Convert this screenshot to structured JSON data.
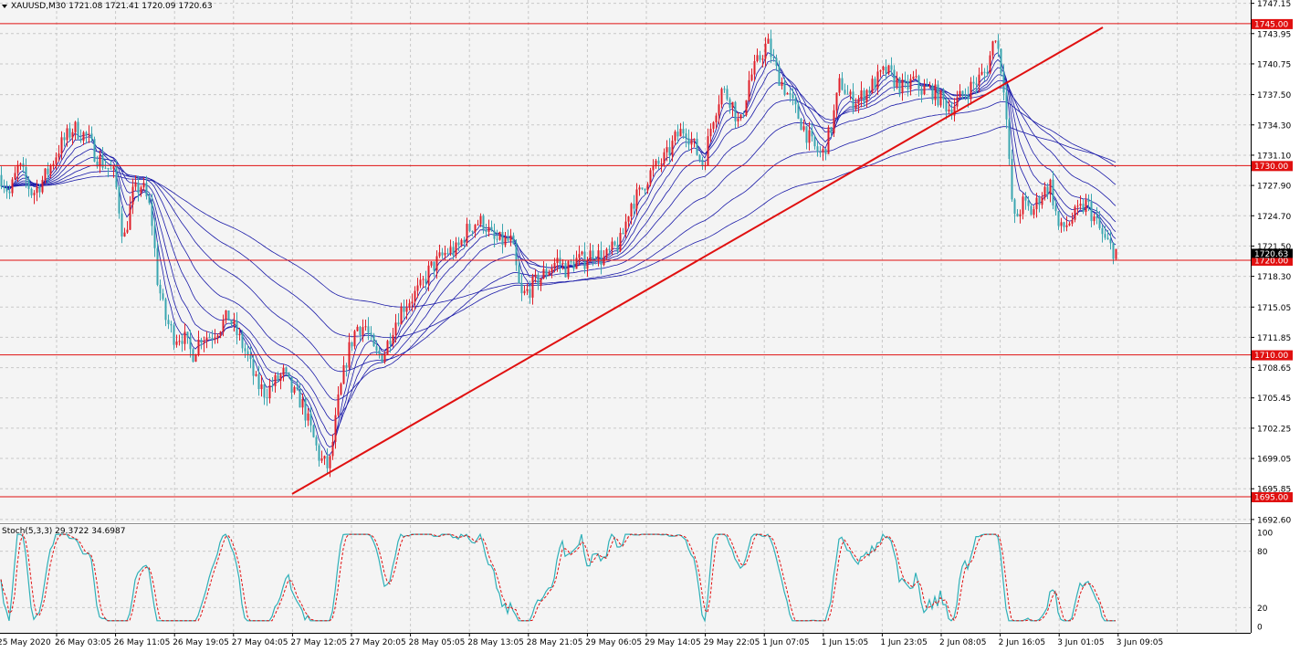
{
  "header": {
    "symbol": "XAUUSD,M30",
    "open": "1721.08",
    "high": "1721.41",
    "low": "1720.09",
    "close": "1720.63"
  },
  "indicator": {
    "label": "Stoch(5,3,3) 29.3722 34.6987",
    "levels": [
      "100",
      "80",
      "20",
      "0"
    ]
  },
  "colors": {
    "background": "#f4f4f4",
    "grid": "#c8c8c8",
    "bull_candle": "#e0202a",
    "bear_candle": "#3aa6b0",
    "ema_ribbon": "#1a1aa8",
    "level_line": "#e01010",
    "trendline": "#e01010",
    "stoch_main": "#2fb0b8",
    "stoch_signal": "#e01010"
  },
  "chart_data": {
    "type": "candlestick",
    "symbol": "XAUUSD",
    "timeframe": "M30",
    "y_ticks": [
      "1747.15",
      "1743.95",
      "1740.75",
      "1737.50",
      "1734.30",
      "1731.10",
      "1727.90",
      "1724.70",
      "1721.50",
      "1718.30",
      "1715.05",
      "1711.85",
      "1708.65",
      "1705.45",
      "1702.25",
      "1699.05",
      "1695.85",
      "1692.60"
    ],
    "ylim": [
      1692.6,
      1747.5
    ],
    "x_ticks": [
      "25 May 2020",
      "26 May 03:05",
      "26 May 11:05",
      "26 May 19:05",
      "27 May 04:05",
      "27 May 12:05",
      "27 May 20:05",
      "28 May 05:05",
      "28 May 13:05",
      "28 May 21:05",
      "29 May 06:05",
      "29 May 14:05",
      "29 May 22:05",
      "1 Jun 07:05",
      "1 Jun 15:05",
      "1 Jun 23:05",
      "2 Jun 08:05",
      "2 Jun 16:05",
      "3 Jun 01:05",
      "3 Jun 09:05"
    ],
    "horizontal_levels": [
      {
        "value": 1745.0,
        "label": "1745.00"
      },
      {
        "value": 1730.0,
        "label": "1730.00"
      },
      {
        "value": 1720.0,
        "label": "1720.00"
      },
      {
        "value": 1710.0,
        "label": "1710.00"
      },
      {
        "value": 1695.0,
        "label": "1695.00"
      }
    ],
    "current_price_label": "1720.63",
    "trendline": {
      "from": {
        "bar": 320,
        "price": 1695.3
      },
      "to": {
        "bar": 1208,
        "price": 1744.6
      }
    },
    "price_path": [
      [
        0,
        1729
      ],
      [
        10,
        1727
      ],
      [
        20,
        1730
      ],
      [
        35,
        1727
      ],
      [
        50,
        1729
      ],
      [
        65,
        1732
      ],
      [
        80,
        1734
      ],
      [
        95,
        1733
      ],
      [
        105,
        1731
      ],
      [
        115,
        1730
      ],
      [
        125,
        1729
      ],
      [
        135,
        1722
      ],
      [
        145,
        1727
      ],
      [
        155,
        1728
      ],
      [
        165,
        1725
      ],
      [
        172,
        1718
      ],
      [
        180,
        1714
      ],
      [
        190,
        1712
      ],
      [
        200,
        1712
      ],
      [
        210,
        1710
      ],
      [
        220,
        1712
      ],
      [
        230,
        1712
      ],
      [
        240,
        1713
      ],
      [
        250,
        1714
      ],
      [
        260,
        1712
      ],
      [
        270,
        1710
      ],
      [
        280,
        1707
      ],
      [
        290,
        1706
      ],
      [
        300,
        1707
      ],
      [
        310,
        1708
      ],
      [
        320,
        1706
      ],
      [
        330,
        1705
      ],
      [
        340,
        1702
      ],
      [
        350,
        1699
      ],
      [
        360,
        1698
      ],
      [
        370,
        1705
      ],
      [
        380,
        1710
      ],
      [
        390,
        1713
      ],
      [
        400,
        1713
      ],
      [
        410,
        1710
      ],
      [
        420,
        1710
      ],
      [
        430,
        1713
      ],
      [
        440,
        1715
      ],
      [
        450,
        1716
      ],
      [
        460,
        1717
      ],
      [
        470,
        1719
      ],
      [
        480,
        1720
      ],
      [
        490,
        1721
      ],
      [
        500,
        1721
      ],
      [
        510,
        1723
      ],
      [
        520,
        1724
      ],
      [
        530,
        1724
      ],
      [
        540,
        1722
      ],
      [
        550,
        1722
      ],
      [
        560,
        1722
      ],
      [
        570,
        1716
      ],
      [
        580,
        1717
      ],
      [
        590,
        1718
      ],
      [
        600,
        1719
      ],
      [
        610,
        1720
      ],
      [
        620,
        1719
      ],
      [
        630,
        1720
      ],
      [
        640,
        1720
      ],
      [
        650,
        1721
      ],
      [
        660,
        1720
      ],
      [
        670,
        1721
      ],
      [
        680,
        1722
      ],
      [
        690,
        1726
      ],
      [
        700,
        1727
      ],
      [
        710,
        1729
      ],
      [
        720,
        1730
      ],
      [
        730,
        1731
      ],
      [
        740,
        1733
      ],
      [
        750,
        1734
      ],
      [
        760,
        1732
      ],
      [
        770,
        1730
      ],
      [
        780,
        1735
      ],
      [
        790,
        1738
      ],
      [
        800,
        1737
      ],
      [
        810,
        1734
      ],
      [
        820,
        1739
      ],
      [
        830,
        1741
      ],
      [
        840,
        1743
      ],
      [
        850,
        1740
      ],
      [
        860,
        1738
      ],
      [
        870,
        1736
      ],
      [
        880,
        1734
      ],
      [
        890,
        1732
      ],
      [
        900,
        1731
      ],
      [
        910,
        1734
      ],
      [
        920,
        1739
      ],
      [
        930,
        1737
      ],
      [
        940,
        1737
      ],
      [
        950,
        1738
      ],
      [
        960,
        1739
      ],
      [
        970,
        1740
      ],
      [
        980,
        1739
      ],
      [
        990,
        1738
      ],
      [
        1000,
        1739
      ],
      [
        1010,
        1738
      ],
      [
        1020,
        1738
      ],
      [
        1030,
        1737
      ],
      [
        1040,
        1736
      ],
      [
        1050,
        1737
      ],
      [
        1060,
        1738
      ],
      [
        1070,
        1739
      ],
      [
        1080,
        1740
      ],
      [
        1090,
        1744
      ],
      [
        1100,
        1738
      ],
      [
        1105,
        1730
      ],
      [
        1110,
        1724
      ],
      [
        1120,
        1726
      ],
      [
        1130,
        1725
      ],
      [
        1140,
        1727
      ],
      [
        1150,
        1728
      ],
      [
        1160,
        1723
      ],
      [
        1170,
        1724
      ],
      [
        1180,
        1725
      ],
      [
        1190,
        1726
      ],
      [
        1200,
        1724
      ],
      [
        1210,
        1722
      ],
      [
        1220,
        1721
      ]
    ],
    "ema_ribbon_periods": [
      8,
      13,
      21,
      34,
      55,
      89,
      144,
      233
    ],
    "stochastic": {
      "params": "5,3,3",
      "main": 29.3722,
      "signal": 34.6987,
      "levels": [
        0,
        20,
        80,
        100
      ]
    }
  }
}
